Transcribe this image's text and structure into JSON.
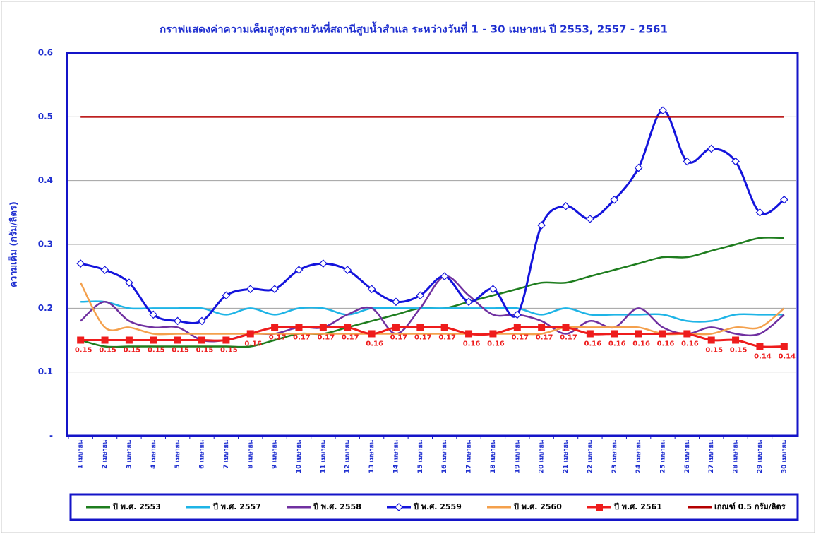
{
  "chart_data": {
    "type": "line",
    "title": "กราฟแสดงค่าความเค็มสูงสุดรายวันที่สถานีสูบน้ำสำแล ระหว่างวันที่ 1 - 30 เมษายน ปี 2553, 2557 - 2561",
    "y_label": "ความเค็ม (กรัม/ลิตร)",
    "categories": [
      "1 เมษายน",
      "2 เมษายน",
      "3 เมษายน",
      "4 เมษายน",
      "5 เมษายน",
      "6 เมษายน",
      "7 เมษายน",
      "8 เมษายน",
      "9 เมษายน",
      "10 เมษายน",
      "11 เมษายน",
      "12 เมษายน",
      "13 เมษายน",
      "14 เมษายน",
      "15 เมษายน",
      "16 เมษายน",
      "17 เมษายน",
      "18 เมษายน",
      "19 เมษายน",
      "20 เมษายน",
      "21 เมษายน",
      "22 เมษายน",
      "23 เมษายน",
      "24 เมษายน",
      "25 เมษายน",
      "26 เมษายน",
      "27 เมษายน",
      "28 เมษายน",
      "29 เมษายน",
      "30 เมษายน"
    ],
    "series": [
      {
        "name": "ปี พ.ศ. 2553",
        "color": "#1e7d1e",
        "values": [
          0.15,
          0.14,
          0.14,
          0.14,
          0.14,
          0.14,
          0.14,
          0.14,
          0.15,
          0.16,
          0.16,
          0.17,
          0.18,
          0.19,
          0.2,
          0.2,
          0.21,
          0.22,
          0.23,
          0.24,
          0.24,
          0.25,
          0.26,
          0.27,
          0.28,
          0.28,
          0.29,
          0.3,
          0.31,
          0.31
        ]
      },
      {
        "name": "ปี พ.ศ. 2557",
        "color": "#1eb4e6",
        "values": [
          0.21,
          0.21,
          0.2,
          0.2,
          0.2,
          0.2,
          0.19,
          0.2,
          0.19,
          0.2,
          0.2,
          0.19,
          0.2,
          0.2,
          0.2,
          0.2,
          0.2,
          0.2,
          0.2,
          0.19,
          0.2,
          0.19,
          0.19,
          0.19,
          0.19,
          0.18,
          0.18,
          0.19,
          0.19,
          0.19
        ]
      },
      {
        "name": "ปี พ.ศ. 2558",
        "color": "#7030a0",
        "values": [
          0.18,
          0.21,
          0.18,
          0.17,
          0.17,
          0.15,
          0.15,
          0.16,
          0.16,
          0.17,
          0.17,
          0.19,
          0.2,
          0.16,
          0.2,
          0.25,
          0.22,
          0.19,
          0.19,
          0.18,
          0.16,
          0.18,
          0.17,
          0.2,
          0.17,
          0.16,
          0.17,
          0.16,
          0.16,
          0.19
        ]
      },
      {
        "name": "ปี พ.ศ. 2559",
        "color": "#1414dc",
        "marker": "diamond",
        "values": [
          0.27,
          0.26,
          0.24,
          0.19,
          0.18,
          0.18,
          0.22,
          0.23,
          0.23,
          0.26,
          0.27,
          0.26,
          0.23,
          0.21,
          0.22,
          0.25,
          0.21,
          0.23,
          0.19,
          0.33,
          0.36,
          0.34,
          0.37,
          0.42,
          0.51,
          0.43,
          0.45,
          0.43,
          0.35,
          0.37
        ]
      },
      {
        "name": "ปี พ.ศ. 2560",
        "color": "#f4a04c",
        "values": [
          0.24,
          0.17,
          0.17,
          0.16,
          0.16,
          0.16,
          0.16,
          0.16,
          0.16,
          0.16,
          0.16,
          0.16,
          0.16,
          0.16,
          0.16,
          0.16,
          0.16,
          0.16,
          0.16,
          0.16,
          0.17,
          0.17,
          0.17,
          0.17,
          0.16,
          0.16,
          0.16,
          0.17,
          0.17,
          0.2
        ]
      },
      {
        "name": "ปี พ.ศ. 2561",
        "color": "#ee1c1c",
        "marker": "square",
        "data_labels": true,
        "values": [
          0.15,
          0.15,
          0.15,
          0.15,
          0.15,
          0.15,
          0.15,
          0.16,
          0.17,
          0.17,
          0.17,
          0.17,
          0.16,
          0.17,
          0.17,
          0.17,
          0.16,
          0.16,
          0.17,
          0.17,
          0.17,
          0.16,
          0.16,
          0.16,
          0.16,
          0.16,
          0.15,
          0.15,
          0.14,
          0.14
        ]
      },
      {
        "name": "เกณฑ์ 0.5 กรัม/ลิตร",
        "color": "#b40000",
        "values": [
          0.5,
          0.5,
          0.5,
          0.5,
          0.5,
          0.5,
          0.5,
          0.5,
          0.5,
          0.5,
          0.5,
          0.5,
          0.5,
          0.5,
          0.5,
          0.5,
          0.5,
          0.5,
          0.5,
          0.5,
          0.5,
          0.5,
          0.5,
          0.5,
          0.5,
          0.5,
          0.5,
          0.5,
          0.5,
          0.5
        ]
      }
    ],
    "ylim": [
      0,
      0.6
    ],
    "yticks": [
      {
        "value": 0,
        "label": "-"
      },
      0.1,
      0.2,
      0.3,
      0.4,
      0.5,
      0.6
    ],
    "grid": true,
    "legend": "bottom"
  }
}
